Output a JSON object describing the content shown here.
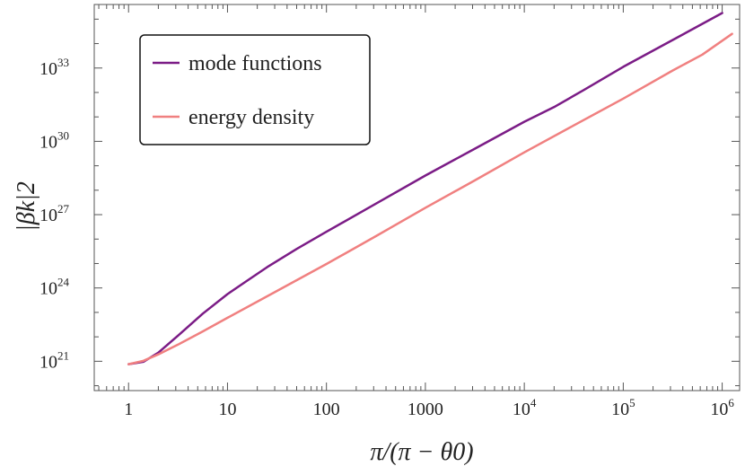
{
  "chart_data": {
    "type": "line",
    "title": "",
    "xlabel": "π/(π − θ0)",
    "ylabel": "|βk|2",
    "xscale": "log",
    "yscale": "log",
    "xlim": [
      0.45,
      1500000
    ],
    "ylim_exponent": [
      19.8,
      35.6
    ],
    "x_ticks": [
      {
        "label": "1",
        "value": 1
      },
      {
        "label": "10",
        "value": 10
      },
      {
        "label": "100",
        "value": 100
      },
      {
        "label": "1000",
        "value": 1000
      },
      {
        "label": "10",
        "sup": "4",
        "value": 10000
      },
      {
        "label": "10",
        "sup": "5",
        "value": 100000
      },
      {
        "label": "10",
        "sup": "6",
        "value": 1000000
      }
    ],
    "y_ticks": [
      {
        "label": "10",
        "sup": "21",
        "exponent": 21
      },
      {
        "label": "10",
        "sup": "24",
        "exponent": 24
      },
      {
        "label": "10",
        "sup": "27",
        "exponent": 27
      },
      {
        "label": "10",
        "sup": "30",
        "exponent": 30
      },
      {
        "label": "10",
        "sup": "33",
        "exponent": 33
      }
    ],
    "grid": false,
    "legend_position": "top-left",
    "series": [
      {
        "name": "mode functions",
        "color": "#7b1c86",
        "log10_x": [
          0,
          0.15,
          0.3,
          0.5,
          0.75,
          1.0,
          1.2,
          1.4,
          1.7,
          2.0,
          2.5,
          3.0,
          3.5,
          4.0,
          4.3,
          4.6,
          5.0,
          5.5,
          6.0
        ],
        "log10_y": [
          20.88,
          20.98,
          21.35,
          22.05,
          22.95,
          23.75,
          24.3,
          24.85,
          25.6,
          26.3,
          27.45,
          28.6,
          29.7,
          30.8,
          31.4,
          32.1,
          33.05,
          34.15,
          35.25
        ]
      },
      {
        "name": "energy density",
        "color": "#f08080",
        "log10_x": [
          0,
          0.15,
          0.3,
          0.5,
          0.75,
          1.0,
          1.5,
          2.0,
          2.5,
          3.0,
          3.5,
          4.0,
          4.5,
          5.0,
          5.5,
          5.8,
          6.1
        ],
        "log10_y": [
          20.88,
          21.02,
          21.28,
          21.68,
          22.22,
          22.78,
          23.88,
          24.98,
          26.12,
          27.28,
          28.4,
          29.55,
          30.65,
          31.75,
          32.9,
          33.55,
          34.4
        ]
      }
    ]
  }
}
